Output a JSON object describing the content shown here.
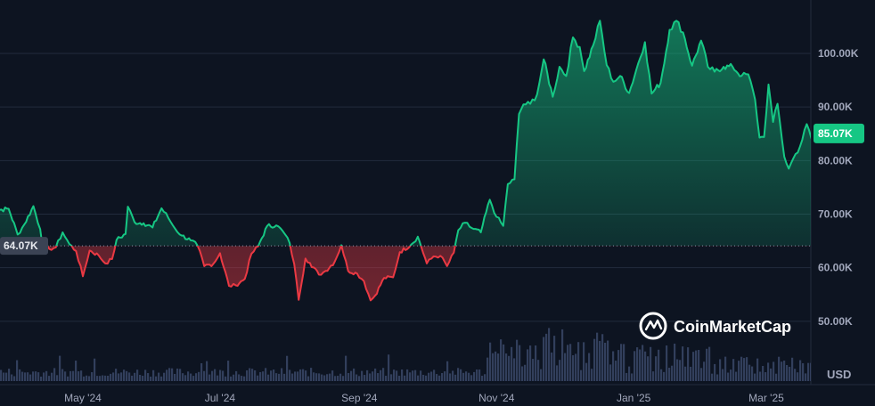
{
  "chart_data": {
    "type": "area",
    "title": "",
    "xlabel": "",
    "ylabel": "",
    "y_unit": "USD",
    "ylim": [
      41000,
      106000
    ],
    "y_ticks": [
      50000,
      60000,
      70000,
      80000,
      90000,
      100000
    ],
    "y_tick_labels": [
      "50.00K",
      "60.00K",
      "70.00K",
      "80.00K",
      "90.00K",
      "100.00K"
    ],
    "x_tick_labels": [
      {
        "label": "May '24",
        "date": "2024-05-01"
      },
      {
        "label": "Jul '24",
        "date": "2024-07-01"
      },
      {
        "label": "Sep '24",
        "date": "2024-09-01"
      },
      {
        "label": "Nov '24",
        "date": "2024-11-01"
      },
      {
        "label": "Jan '25",
        "date": "2025-01-01"
      },
      {
        "label": "Mar '25",
        "date": "2025-03-01"
      }
    ],
    "baseline": {
      "value": 64070,
      "label": "64.07K"
    },
    "current": {
      "value": 85070,
      "label": "85.07K"
    },
    "grid": true,
    "colors": {
      "above": "#16c784",
      "below": "#ea3943",
      "background": "#0d1421",
      "volume": "#3a4766"
    },
    "series": [
      {
        "points": [
          [
            "2024-03-20",
            68500
          ],
          [
            "2024-03-25",
            70800
          ],
          [
            "2024-03-29",
            71000
          ],
          [
            "2024-04-02",
            66200
          ],
          [
            "2024-04-05",
            68100
          ],
          [
            "2024-04-09",
            71500
          ],
          [
            "2024-04-12",
            67200
          ],
          [
            "2024-04-13",
            64900
          ],
          [
            "2024-04-16",
            63500
          ],
          [
            "2024-04-19",
            63800
          ],
          [
            "2024-04-22",
            66600
          ],
          [
            "2024-04-25",
            64400
          ],
          [
            "2024-04-28",
            63100
          ],
          [
            "2024-05-01",
            58400
          ],
          [
            "2024-05-04",
            63200
          ],
          [
            "2024-05-08",
            62300
          ],
          [
            "2024-05-11",
            60800
          ],
          [
            "2024-05-14",
            61600
          ],
          [
            "2024-05-16",
            65200
          ],
          [
            "2024-05-20",
            66300
          ],
          [
            "2024-05-21",
            71400
          ],
          [
            "2024-05-24",
            68500
          ],
          [
            "2024-05-28",
            68300
          ],
          [
            "2024-06-01",
            67500
          ],
          [
            "2024-06-05",
            71100
          ],
          [
            "2024-06-08",
            69300
          ],
          [
            "2024-06-11",
            67300
          ],
          [
            "2024-06-14",
            66000
          ],
          [
            "2024-06-18",
            65100
          ],
          [
            "2024-06-21",
            64100
          ],
          [
            "2024-06-24",
            60300
          ],
          [
            "2024-06-28",
            60700
          ],
          [
            "2024-07-01",
            62700
          ],
          [
            "2024-07-05",
            56600
          ],
          [
            "2024-07-08",
            56700
          ],
          [
            "2024-07-12",
            57900
          ],
          [
            "2024-07-15",
            62600
          ],
          [
            "2024-07-18",
            64000
          ],
          [
            "2024-07-22",
            67800
          ],
          [
            "2024-07-26",
            67900
          ],
          [
            "2024-07-29",
            66800
          ],
          [
            "2024-08-01",
            64600
          ],
          [
            "2024-08-03",
            60700
          ],
          [
            "2024-08-05",
            54000
          ],
          [
            "2024-08-08",
            61700
          ],
          [
            "2024-08-10",
            60900
          ],
          [
            "2024-08-14",
            58700
          ],
          [
            "2024-08-17",
            59400
          ],
          [
            "2024-08-21",
            61100
          ],
          [
            "2024-08-24",
            64200
          ],
          [
            "2024-08-27",
            59400
          ],
          [
            "2024-08-31",
            58900
          ],
          [
            "2024-09-03",
            57500
          ],
          [
            "2024-09-06",
            53900
          ],
          [
            "2024-09-08",
            54800
          ],
          [
            "2024-09-12",
            58100
          ],
          [
            "2024-09-16",
            58200
          ],
          [
            "2024-09-19",
            62900
          ],
          [
            "2024-09-24",
            64300
          ],
          [
            "2024-09-27",
            65800
          ],
          [
            "2024-10-01",
            60800
          ],
          [
            "2024-10-04",
            62100
          ],
          [
            "2024-10-07",
            62200
          ],
          [
            "2024-10-10",
            60300
          ],
          [
            "2024-10-13",
            62800
          ],
          [
            "2024-10-15",
            67000
          ],
          [
            "2024-10-18",
            68400
          ],
          [
            "2024-10-21",
            67400
          ],
          [
            "2024-10-25",
            66600
          ],
          [
            "2024-10-29",
            72700
          ],
          [
            "2024-11-01",
            69500
          ],
          [
            "2024-11-04",
            67800
          ],
          [
            "2024-11-06",
            75600
          ],
          [
            "2024-11-09",
            76500
          ],
          [
            "2024-11-11",
            88700
          ],
          [
            "2024-11-13",
            90500
          ],
          [
            "2024-11-16",
            90600
          ],
          [
            "2024-11-19",
            92300
          ],
          [
            "2024-11-22",
            98900
          ],
          [
            "2024-11-26",
            91900
          ],
          [
            "2024-11-29",
            97500
          ],
          [
            "2024-12-02",
            95800
          ],
          [
            "2024-12-05",
            103000
          ],
          [
            "2024-12-08",
            101200
          ],
          [
            "2024-12-10",
            96700
          ],
          [
            "2024-12-14",
            101500
          ],
          [
            "2024-12-17",
            106100
          ],
          [
            "2024-12-20",
            97800
          ],
          [
            "2024-12-23",
            94700
          ],
          [
            "2024-12-26",
            95800
          ],
          [
            "2024-12-30",
            92600
          ],
          [
            "2025-01-03",
            98100
          ],
          [
            "2025-01-06",
            102100
          ],
          [
            "2025-01-09",
            92500
          ],
          [
            "2025-01-13",
            94500
          ],
          [
            "2025-01-17",
            104400
          ],
          [
            "2025-01-20",
            106100
          ],
          [
            "2025-01-23",
            103900
          ],
          [
            "2025-01-27",
            97700
          ],
          [
            "2025-01-31",
            102400
          ],
          [
            "2025-02-03",
            97500
          ],
          [
            "2025-02-06",
            96600
          ],
          [
            "2025-02-10",
            97500
          ],
          [
            "2025-02-14",
            97500
          ],
          [
            "2025-02-18",
            95800
          ],
          [
            "2025-02-21",
            96100
          ],
          [
            "2025-02-24",
            91400
          ],
          [
            "2025-02-26",
            84300
          ],
          [
            "2025-02-28",
            84400
          ],
          [
            "2025-03-02",
            94200
          ],
          [
            "2025-03-04",
            87200
          ],
          [
            "2025-03-06",
            90600
          ],
          [
            "2025-03-09",
            80700
          ],
          [
            "2025-03-11",
            78500
          ],
          [
            "2025-03-13",
            80400
          ],
          [
            "2025-03-16",
            82600
          ],
          [
            "2025-03-19",
            86800
          ],
          [
            "2025-03-21",
            84200
          ],
          [
            "2025-03-24",
            87500
          ],
          [
            "2025-03-27",
            87200
          ],
          [
            "2025-03-30",
            82300
          ],
          [
            "2025-04-02",
            85070
          ]
        ]
      }
    ],
    "volume_note": "relative daily volume bars along the bottom edge (no scale printed)"
  },
  "branding": {
    "name": "CoinMarketCap",
    "logo_icon": "coinmarketcap-logo-icon"
  }
}
